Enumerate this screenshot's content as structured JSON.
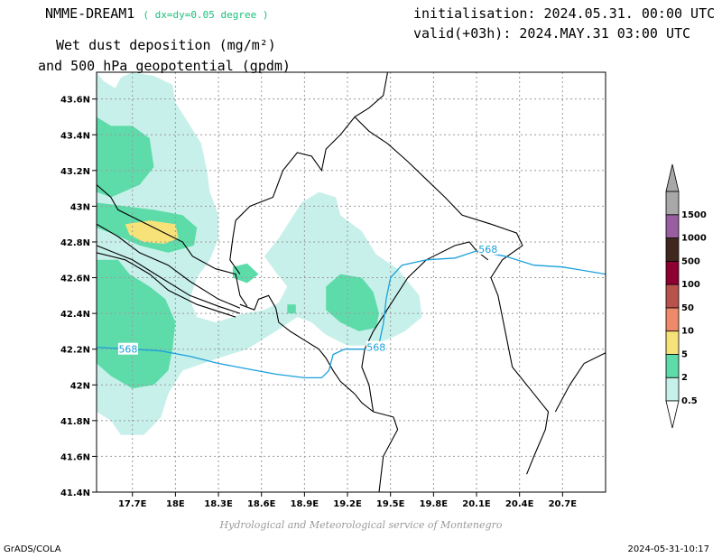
{
  "header": {
    "model": "NMME-DREAM1",
    "resolution": "( dx=dy=0.05 degree )",
    "variable_line1": "Wet dust deposition (mg/m²)",
    "variable_line2": "and 500 hPa geopotential (gpdm)",
    "init": "initialisation: 2024.05.31. 00:00 UTC",
    "valid": "valid(+03h): 2024.MAY.31 03:00 UTC"
  },
  "footer": {
    "credit": "Hydrological and Meteorological service of Montenegro",
    "software": "GrADS/COLA",
    "timestamp": "2024-05-31-10:17"
  },
  "map": {
    "lon_range": [
      17.45,
      21.0
    ],
    "lat_range": [
      41.4,
      43.75
    ],
    "lon_ticks": [
      {
        "value": 17.7,
        "label": "17.7E"
      },
      {
        "value": 18.0,
        "label": "18E"
      },
      {
        "value": 18.3,
        "label": "18.3E"
      },
      {
        "value": 18.6,
        "label": "18.6E"
      },
      {
        "value": 18.9,
        "label": "18.9E"
      },
      {
        "value": 19.2,
        "label": "19.2E"
      },
      {
        "value": 19.5,
        "label": "19.5E"
      },
      {
        "value": 19.8,
        "label": "19.8E"
      },
      {
        "value": 20.1,
        "label": "20.1E"
      },
      {
        "value": 20.4,
        "label": "20.4E"
      },
      {
        "value": 20.7,
        "label": "20.7E"
      }
    ],
    "lat_ticks": [
      {
        "value": 41.4,
        "label": "41.4N"
      },
      {
        "value": 41.6,
        "label": "41.6N"
      },
      {
        "value": 41.8,
        "label": "41.8N"
      },
      {
        "value": 42.0,
        "label": "42N"
      },
      {
        "value": 42.2,
        "label": "42.2N"
      },
      {
        "value": 42.4,
        "label": "42.4N"
      },
      {
        "value": 42.6,
        "label": "42.6N"
      },
      {
        "value": 42.8,
        "label": "42.8N"
      },
      {
        "value": 43.0,
        "label": "43N"
      },
      {
        "value": 43.2,
        "label": "43.2N"
      },
      {
        "value": 43.4,
        "label": "43.4N"
      },
      {
        "value": 43.6,
        "label": "43.6N"
      }
    ],
    "grid": true,
    "colors": {
      "c0_5": "#c8f0ea",
      "c2": "#5ddcaa",
      "c5": "#f7e27a",
      "contour": "#1aa0dc",
      "border": "#000000"
    },
    "geopotential": {
      "level": "568",
      "lines": [
        [
          [
            17.45,
            42.21
          ],
          [
            17.7,
            42.2
          ],
          [
            17.9,
            42.19
          ],
          [
            18.1,
            42.16
          ],
          [
            18.3,
            42.12
          ],
          [
            18.5,
            42.09
          ],
          [
            18.7,
            42.06
          ],
          [
            18.9,
            42.04
          ],
          [
            19.02,
            42.04
          ],
          [
            19.07,
            42.08
          ],
          [
            19.1,
            42.17
          ],
          [
            19.18,
            42.2
          ],
          [
            19.34,
            42.2
          ],
          [
            19.42,
            42.23
          ],
          [
            19.45,
            42.34
          ],
          [
            19.47,
            42.48
          ],
          [
            19.5,
            42.6
          ],
          [
            19.58,
            42.67
          ],
          [
            19.75,
            42.7
          ],
          [
            19.95,
            42.71
          ],
          [
            20.1,
            42.75
          ],
          [
            20.3,
            42.72
          ],
          [
            20.5,
            42.67
          ],
          [
            20.7,
            42.66
          ],
          [
            21.0,
            42.62
          ]
        ]
      ],
      "labels": [
        {
          "text": "568",
          "lon": 17.67,
          "lat": 42.2
        },
        {
          "text": "568",
          "lon": 19.4,
          "lat": 42.21
        },
        {
          "text": "568",
          "lon": 20.18,
          "lat": 42.76
        }
      ]
    },
    "fields": [
      {
        "level": "0.5",
        "points": [
          [
            17.45,
            43.75
          ],
          [
            17.5,
            43.7
          ],
          [
            17.58,
            43.66
          ],
          [
            17.62,
            43.72
          ],
          [
            17.7,
            43.75
          ],
          [
            17.85,
            43.73
          ],
          [
            17.98,
            43.68
          ],
          [
            18.0,
            43.58
          ],
          [
            18.08,
            43.48
          ],
          [
            18.18,
            43.35
          ],
          [
            18.22,
            43.2
          ],
          [
            18.24,
            43.08
          ],
          [
            18.3,
            42.95
          ],
          [
            18.3,
            42.82
          ],
          [
            18.24,
            42.7
          ],
          [
            18.15,
            42.6
          ],
          [
            18.1,
            42.48
          ],
          [
            18.15,
            42.38
          ],
          [
            18.28,
            42.35
          ],
          [
            18.48,
            42.4
          ],
          [
            18.62,
            42.42
          ],
          [
            18.72,
            42.46
          ],
          [
            18.78,
            42.55
          ],
          [
            18.7,
            42.63
          ],
          [
            18.62,
            42.72
          ],
          [
            18.72,
            42.82
          ],
          [
            18.8,
            42.92
          ],
          [
            18.88,
            43.02
          ],
          [
            19.0,
            43.08
          ],
          [
            19.12,
            43.05
          ],
          [
            19.15,
            42.95
          ],
          [
            19.3,
            42.86
          ],
          [
            19.4,
            42.73
          ],
          [
            19.55,
            42.65
          ],
          [
            19.7,
            42.5
          ],
          [
            19.72,
            42.38
          ],
          [
            19.6,
            42.3
          ],
          [
            19.5,
            42.26
          ],
          [
            19.35,
            42.22
          ],
          [
            19.2,
            42.22
          ],
          [
            19.05,
            42.28
          ],
          [
            18.95,
            42.35
          ],
          [
            18.85,
            42.38
          ],
          [
            18.7,
            42.3
          ],
          [
            18.5,
            42.2
          ],
          [
            18.3,
            42.15
          ],
          [
            18.05,
            42.08
          ],
          [
            17.95,
            41.95
          ],
          [
            17.9,
            41.82
          ],
          [
            17.78,
            41.72
          ],
          [
            17.62,
            41.72
          ],
          [
            17.55,
            41.8
          ],
          [
            17.45,
            41.85
          ]
        ]
      },
      {
        "level": "2",
        "points": [
          [
            17.45,
            43.5
          ],
          [
            17.55,
            43.45
          ],
          [
            17.7,
            43.45
          ],
          [
            17.82,
            43.38
          ],
          [
            17.85,
            43.22
          ],
          [
            17.75,
            43.12
          ],
          [
            17.55,
            43.05
          ],
          [
            17.45,
            43.08
          ]
        ]
      },
      {
        "level": "2",
        "points": [
          [
            17.45,
            43.02
          ],
          [
            17.65,
            43.0
          ],
          [
            17.85,
            42.98
          ],
          [
            18.05,
            42.95
          ],
          [
            18.15,
            42.88
          ],
          [
            18.13,
            42.78
          ],
          [
            17.95,
            42.74
          ],
          [
            17.75,
            42.78
          ],
          [
            17.55,
            42.85
          ],
          [
            17.45,
            42.88
          ]
        ]
      },
      {
        "level": "2",
        "points": [
          [
            17.45,
            42.7
          ],
          [
            17.6,
            42.7
          ],
          [
            17.68,
            42.62
          ],
          [
            17.82,
            42.55
          ],
          [
            17.93,
            42.48
          ],
          [
            18.0,
            42.35
          ],
          [
            17.98,
            42.2
          ],
          [
            17.95,
            42.08
          ],
          [
            17.85,
            42.0
          ],
          [
            17.7,
            41.98
          ],
          [
            17.55,
            42.05
          ],
          [
            17.45,
            42.12
          ]
        ]
      },
      {
        "level": "2",
        "points": [
          [
            18.4,
            42.66
          ],
          [
            18.5,
            42.68
          ],
          [
            18.58,
            42.62
          ],
          [
            18.5,
            42.57
          ],
          [
            18.4,
            42.6
          ]
        ]
      },
      {
        "level": "2",
        "points": [
          [
            18.78,
            42.45
          ],
          [
            18.84,
            42.45
          ],
          [
            18.84,
            42.4
          ],
          [
            18.78,
            42.4
          ]
        ]
      },
      {
        "level": "2",
        "points": [
          [
            19.05,
            42.55
          ],
          [
            19.15,
            42.62
          ],
          [
            19.3,
            42.6
          ],
          [
            19.38,
            42.52
          ],
          [
            19.42,
            42.4
          ],
          [
            19.4,
            42.32
          ],
          [
            19.28,
            42.3
          ],
          [
            19.15,
            42.35
          ],
          [
            19.05,
            42.42
          ]
        ]
      },
      {
        "level": "5",
        "points": [
          [
            17.65,
            42.9
          ],
          [
            17.82,
            42.92
          ],
          [
            18.0,
            42.9
          ],
          [
            18.02,
            42.82
          ],
          [
            17.92,
            42.79
          ],
          [
            17.78,
            42.8
          ],
          [
            17.68,
            42.84
          ]
        ]
      }
    ],
    "borders": [
      [
        [
          17.45,
          43.12
        ],
        [
          17.55,
          43.05
        ],
        [
          17.6,
          42.98
        ],
        [
          17.75,
          42.92
        ],
        [
          17.9,
          42.86
        ],
        [
          18.05,
          42.8
        ],
        [
          18.12,
          42.72
        ],
        [
          18.28,
          42.65
        ],
        [
          18.42,
          42.62
        ],
        [
          18.45,
          42.5
        ],
        [
          18.5,
          42.44
        ]
      ],
      [
        [
          17.45,
          42.9
        ],
        [
          17.6,
          42.83
        ],
        [
          17.75,
          42.74
        ],
        [
          17.95,
          42.67
        ],
        [
          18.1,
          42.58
        ],
        [
          18.3,
          42.48
        ],
        [
          18.45,
          42.43
        ]
      ],
      [
        [
          17.45,
          42.78
        ],
        [
          17.7,
          42.7
        ],
        [
          17.9,
          42.6
        ],
        [
          18.1,
          42.5
        ],
        [
          18.3,
          42.44
        ],
        [
          18.45,
          42.4
        ]
      ],
      [
        [
          17.45,
          42.74
        ],
        [
          17.65,
          42.7
        ],
        [
          17.82,
          42.62
        ],
        [
          17.95,
          42.53
        ],
        [
          18.15,
          42.45
        ],
        [
          18.42,
          42.38
        ]
      ],
      [
        [
          18.45,
          42.45
        ],
        [
          18.55,
          42.42
        ],
        [
          18.58,
          42.48
        ],
        [
          18.65,
          42.5
        ],
        [
          18.7,
          42.43
        ],
        [
          18.72,
          42.35
        ],
        [
          18.8,
          42.3
        ],
        [
          18.9,
          42.25
        ],
        [
          19.0,
          42.2
        ],
        [
          19.05,
          42.15
        ],
        [
          19.1,
          42.08
        ],
        [
          19.15,
          42.02
        ],
        [
          19.25,
          41.95
        ],
        [
          19.3,
          41.9
        ],
        [
          19.38,
          41.85
        ]
      ],
      [
        [
          18.45,
          42.62
        ],
        [
          18.38,
          42.7
        ],
        [
          18.4,
          42.82
        ],
        [
          18.42,
          42.92
        ],
        [
          18.52,
          43.0
        ],
        [
          18.68,
          43.05
        ],
        [
          18.75,
          43.2
        ],
        [
          18.85,
          43.3
        ],
        [
          18.95,
          43.28
        ],
        [
          19.02,
          43.2
        ],
        [
          19.05,
          43.32
        ],
        [
          19.15,
          43.4
        ],
        [
          19.25,
          43.5
        ],
        [
          19.35,
          43.55
        ],
        [
          19.45,
          43.62
        ],
        [
          19.48,
          43.75
        ]
      ],
      [
        [
          19.25,
          43.5
        ],
        [
          19.35,
          43.42
        ],
        [
          19.48,
          43.35
        ],
        [
          19.62,
          43.25
        ],
        [
          19.75,
          43.15
        ],
        [
          19.88,
          43.05
        ],
        [
          20.0,
          42.95
        ],
        [
          20.2,
          42.9
        ],
        [
          20.38,
          42.85
        ],
        [
          20.42,
          42.78
        ],
        [
          20.28,
          42.7
        ],
        [
          20.2,
          42.6
        ],
        [
          20.25,
          42.5
        ],
        [
          20.3,
          42.3
        ],
        [
          20.35,
          42.1
        ],
        [
          20.5,
          41.95
        ],
        [
          20.6,
          41.85
        ],
        [
          20.58,
          41.75
        ],
        [
          20.5,
          41.6
        ],
        [
          20.45,
          41.5
        ]
      ],
      [
        [
          19.38,
          42.3
        ],
        [
          19.5,
          42.45
        ],
        [
          19.62,
          42.6
        ],
        [
          19.75,
          42.7
        ],
        [
          19.95,
          42.78
        ],
        [
          20.05,
          42.8
        ],
        [
          20.1,
          42.75
        ],
        [
          20.18,
          42.7
        ]
      ],
      [
        [
          19.38,
          42.3
        ],
        [
          19.32,
          42.2
        ],
        [
          19.3,
          42.1
        ],
        [
          19.35,
          42.0
        ],
        [
          19.38,
          41.85
        ]
      ],
      [
        [
          19.38,
          41.85
        ],
        [
          19.52,
          41.82
        ],
        [
          19.55,
          41.75
        ],
        [
          19.45,
          41.6
        ],
        [
          19.42,
          41.4
        ]
      ],
      [
        [
          20.65,
          41.85
        ],
        [
          20.75,
          42.0
        ],
        [
          20.85,
          42.12
        ],
        [
          21.0,
          42.18
        ]
      ]
    ]
  },
  "legend": {
    "colors": [
      "#c8f0ea",
      "#5ddcaa",
      "#f7e27a",
      "#ee8a6a",
      "#b8524c",
      "#8c0032",
      "#40281e",
      "#985ea0",
      "#a8a8a8"
    ],
    "labels": [
      "0.5",
      "2",
      "5",
      "10",
      "50",
      "100",
      "500",
      "1000",
      "1500"
    ]
  }
}
